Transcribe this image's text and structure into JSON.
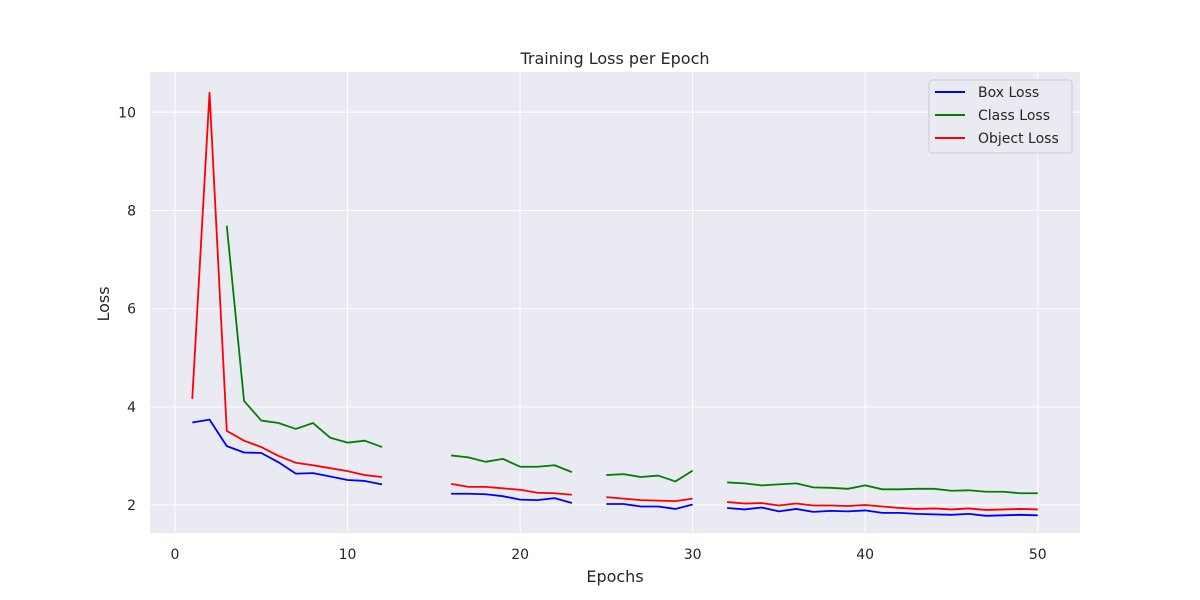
{
  "chart_data": {
    "type": "line",
    "title": "Training Loss per Epoch",
    "xlabel": "Epochs",
    "ylabel": "Loss",
    "xlim": [
      -1.45,
      52.45
    ],
    "ylim": [
      1.43,
      10.82
    ],
    "xticks": [
      0,
      10,
      20,
      30,
      40,
      50
    ],
    "yticks": [
      2,
      4,
      6,
      8,
      10
    ],
    "grid": true,
    "legend_position": "top-right",
    "colors": {
      "background": "#eaeaf2",
      "grid": "#ffffff"
    },
    "x": [
      1,
      2,
      3,
      4,
      5,
      6,
      7,
      8,
      9,
      10,
      11,
      12,
      13,
      14,
      15,
      16,
      17,
      18,
      19,
      20,
      21,
      22,
      23,
      24,
      25,
      26,
      27,
      28,
      29,
      30,
      31,
      32,
      33,
      34,
      35,
      36,
      37,
      38,
      39,
      40,
      41,
      42,
      43,
      44,
      45,
      46,
      47,
      48,
      49,
      50
    ],
    "series": [
      {
        "name": "Box Loss",
        "color": "#0000ff",
        "values": [
          3.68,
          3.74,
          3.2,
          3.07,
          3.06,
          2.87,
          2.64,
          2.65,
          2.58,
          2.51,
          2.49,
          2.42,
          null,
          null,
          null,
          2.23,
          2.23,
          2.22,
          2.18,
          2.11,
          2.1,
          2.14,
          2.04,
          null,
          2.02,
          2.02,
          1.97,
          1.97,
          1.92,
          2.01,
          null,
          1.94,
          1.91,
          1.95,
          1.87,
          1.92,
          1.86,
          1.88,
          1.87,
          1.89,
          1.84,
          1.84,
          1.82,
          1.81,
          1.8,
          1.82,
          1.78,
          1.79,
          1.8,
          1.79
        ]
      },
      {
        "name": "Class Loss",
        "color": "#008000",
        "values": [
          null,
          null,
          7.69,
          4.12,
          3.72,
          3.67,
          3.55,
          3.67,
          3.37,
          3.27,
          3.31,
          3.18,
          null,
          null,
          null,
          3.01,
          2.97,
          2.88,
          2.94,
          2.78,
          2.78,
          2.81,
          2.67,
          null,
          2.61,
          2.63,
          2.57,
          2.6,
          2.48,
          2.7,
          null,
          2.46,
          2.44,
          2.4,
          2.42,
          2.44,
          2.36,
          2.35,
          2.33,
          2.4,
          2.32,
          2.32,
          2.33,
          2.33,
          2.29,
          2.3,
          2.27,
          2.27,
          2.24,
          2.24
        ]
      },
      {
        "name": "Object Loss",
        "color": "#ff0000",
        "values": [
          4.16,
          10.4,
          3.51,
          3.31,
          3.18,
          3.0,
          2.86,
          2.81,
          2.75,
          2.69,
          2.61,
          2.57,
          null,
          null,
          null,
          2.43,
          2.37,
          2.37,
          2.34,
          2.31,
          2.25,
          2.24,
          2.21,
          null,
          2.16,
          2.13,
          2.1,
          2.09,
          2.08,
          2.13,
          null,
          2.06,
          2.03,
          2.04,
          1.99,
          2.03,
          1.99,
          1.99,
          1.98,
          2.0,
          1.97,
          1.94,
          1.92,
          1.93,
          1.91,
          1.93,
          1.9,
          1.91,
          1.92,
          1.91
        ]
      }
    ]
  }
}
